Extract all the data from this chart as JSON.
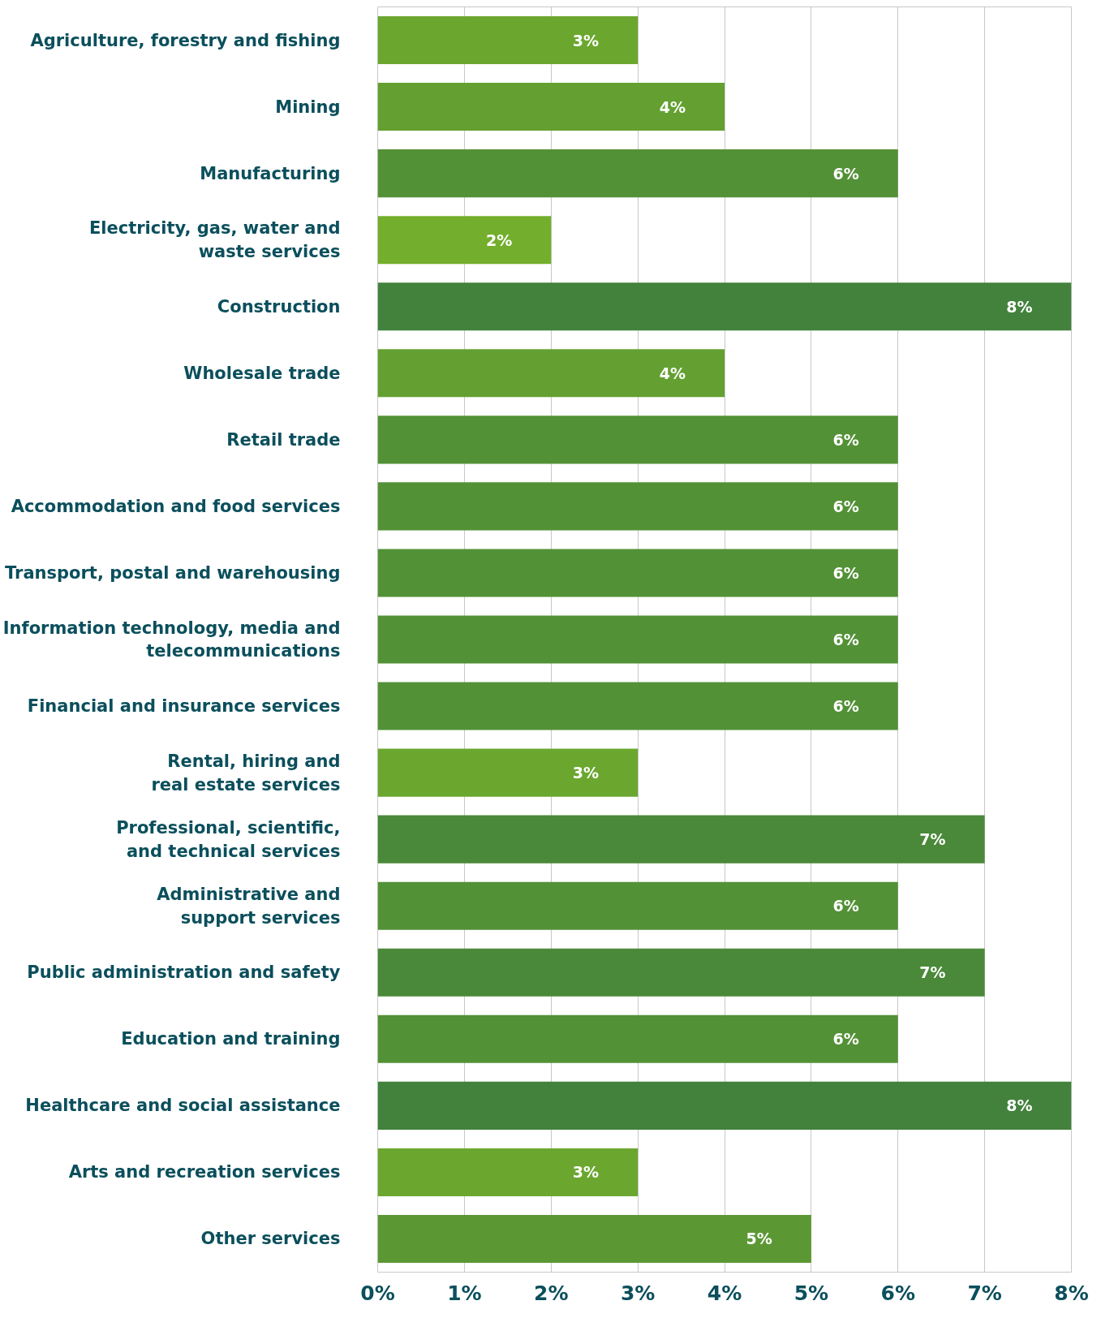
{
  "chart_data": {
    "type": "bar",
    "orientation": "horizontal",
    "categories": [
      "Agriculture, forestry and fishing",
      "Mining",
      "Manufacturing",
      "Electricity, gas, water and\nwaste services",
      "Construction",
      "Wholesale trade",
      "Retail trade",
      "Accommodation and food services",
      "Transport, postal and warehousing",
      "Information technology, media and\ntelecommunications",
      "Financial and insurance services",
      "Rental, hiring and\nreal estate services",
      "Professional, scientific,\nand technical services",
      "Administrative and\nsupport services",
      "Public administration and safety",
      "Education and training",
      "Healthcare and social assistance",
      "Arts and recreation services",
      "Other services"
    ],
    "values": [
      3,
      4,
      6,
      2,
      8,
      4,
      6,
      6,
      6,
      6,
      6,
      3,
      7,
      6,
      7,
      6,
      8,
      3,
      5
    ],
    "value_labels": [
      "3%",
      "4%",
      "6%",
      "2%",
      "8%",
      "4%",
      "6%",
      "6%",
      "6%",
      "6%",
      "6%",
      "3%",
      "7%",
      "6%",
      "7%",
      "6%",
      "8%",
      "3%",
      "5%"
    ],
    "colors": [
      "#6ba72f",
      "#63a031",
      "#539136",
      "#73ae2c",
      "#42823c",
      "#63a031",
      "#539136",
      "#539136",
      "#539136",
      "#539136",
      "#539136",
      "#6ba72f",
      "#4a8939",
      "#539136",
      "#4a8939",
      "#539136",
      "#42823c",
      "#6ba72f",
      "#5b9834"
    ],
    "xlim": [
      0,
      8
    ],
    "xticks": [
      {
        "value": 0,
        "label": "0%"
      },
      {
        "value": 1,
        "label": "1%"
      },
      {
        "value": 2,
        "label": "2%"
      },
      {
        "value": 3,
        "label": "3%"
      },
      {
        "value": 4,
        "label": "4%"
      },
      {
        "value": 5,
        "label": "5%"
      },
      {
        "value": 6,
        "label": "6%"
      },
      {
        "value": 7,
        "label": "7%"
      },
      {
        "value": 8,
        "label": "8%"
      }
    ],
    "grid": "x"
  }
}
